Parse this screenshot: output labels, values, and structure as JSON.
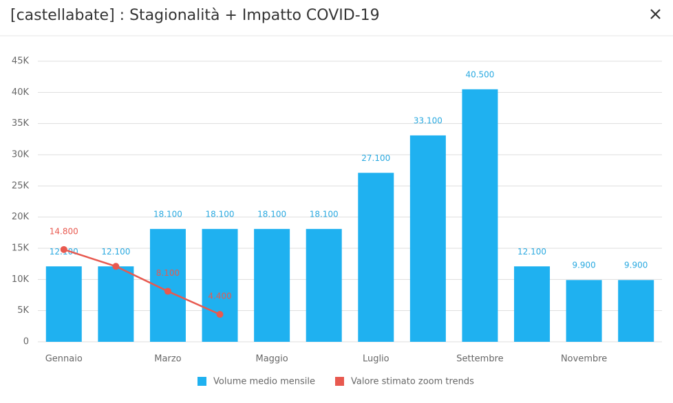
{
  "chart_data": {
    "type": "bar",
    "title": "[castellabate] : Stagionalità + Impatto COVID-19",
    "categories": [
      "Gennaio",
      null,
      "Marzo",
      null,
      "Maggio",
      null,
      "Luglio",
      null,
      "Settembre",
      null,
      "Novembre",
      null
    ],
    "series": [
      {
        "name": "Volume medio mensile",
        "type": "bar",
        "color": "#1fb1f0",
        "values": [
          12100,
          12100,
          18100,
          18100,
          18100,
          18100,
          27100,
          33100,
          40500,
          12100,
          9900,
          9900
        ],
        "value_labels": [
          "12.100",
          "12.100",
          "18.100",
          "18.100",
          "18.100",
          "18.100",
          "27.100",
          "33.100",
          "40.500",
          "12.100",
          "9.900",
          "9.900"
        ]
      },
      {
        "name": "Valore stimato zoom trends",
        "type": "line",
        "color": "#e8594f",
        "values": [
          14800,
          12100,
          8100,
          4400,
          null,
          null,
          null,
          null,
          null,
          null,
          null,
          null
        ],
        "value_labels": [
          "14.800",
          null,
          "8.100",
          "4.400",
          null,
          null,
          null,
          null,
          null,
          null,
          null,
          null
        ]
      }
    ],
    "ylim": [
      0,
      45000
    ],
    "yticks": [
      0,
      {
        "value": 5000,
        "label": "5K"
      },
      {
        "value": 10000,
        "label": "10K"
      },
      {
        "value": 15000,
        "label": "15K"
      },
      {
        "value": 20000,
        "label": "20K"
      },
      {
        "value": 25000,
        "label": "25K"
      },
      {
        "value": 30000,
        "label": "30K"
      },
      {
        "value": 35000,
        "label": "35K"
      },
      {
        "value": 40000,
        "label": "40K"
      },
      {
        "value": 45000,
        "label": "45K"
      }
    ],
    "grid": true,
    "legend": "bottom"
  }
}
